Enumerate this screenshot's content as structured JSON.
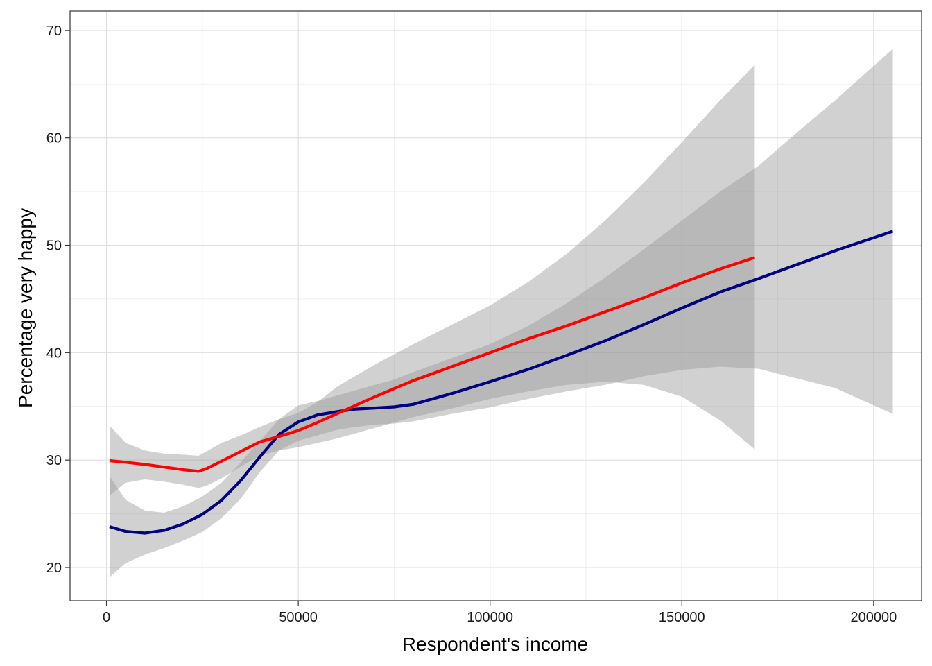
{
  "chart_data": {
    "type": "line",
    "title": "",
    "xlabel": "Respondent's income",
    "ylabel": "Percentage very happy",
    "xlim": [
      -9500,
      212500
    ],
    "ylim": [
      16.9,
      71.8
    ],
    "x_ticks": [
      0,
      50000,
      100000,
      150000,
      200000
    ],
    "x_tick_labels": [
      "0",
      "50000",
      "100000",
      "150000",
      "200000"
    ],
    "y_ticks": [
      20,
      30,
      40,
      50,
      60,
      70
    ],
    "y_tick_labels": [
      "20",
      "30",
      "40",
      "50",
      "60",
      "70"
    ],
    "grid": true,
    "legend": "none",
    "colors": {
      "panel_border": "#333333",
      "grid_major": "#dedede",
      "grid_minor": "#efefef",
      "ribbon": "#999999"
    },
    "series": [
      {
        "color": "#000080",
        "x": [
          800,
          5000,
          10000,
          15000,
          20000,
          25000,
          30000,
          35000,
          40000,
          45000,
          50000,
          55000,
          60000,
          65000,
          70000,
          75000,
          80000,
          90000,
          100000,
          110000,
          120000,
          130000,
          140000,
          150000,
          160000,
          170000,
          180000,
          190000,
          205000
        ],
        "y": [
          23.8,
          23.35,
          23.2,
          23.45,
          24.05,
          24.95,
          26.25,
          28.1,
          30.3,
          32.4,
          33.55,
          34.2,
          34.5,
          34.75,
          34.85,
          34.95,
          35.2,
          36.2,
          37.3,
          38.45,
          39.75,
          41.1,
          42.6,
          44.15,
          45.65,
          46.9,
          48.2,
          49.5,
          51.3
        ],
        "lower": [
          19.1,
          20.4,
          21.2,
          21.8,
          22.5,
          23.3,
          24.6,
          26.4,
          28.9,
          30.9,
          31.8,
          32.3,
          32.8,
          33.1,
          33.3,
          33.4,
          33.6,
          34.3,
          34.9,
          35.7,
          36.4,
          37.0,
          37.8,
          38.4,
          38.7,
          38.5,
          37.6,
          36.7,
          34.3
        ],
        "upper": [
          28.5,
          26.3,
          25.3,
          25.1,
          25.7,
          26.6,
          27.9,
          29.8,
          31.8,
          33.8,
          35.1,
          35.5,
          36.0,
          36.5,
          37.0,
          37.5,
          38.2,
          39.5,
          40.8,
          42.5,
          44.6,
          47.0,
          49.6,
          52.3,
          55.0,
          57.4,
          60.5,
          63.5,
          68.3
        ]
      },
      {
        "color": "#ff0000",
        "x": [
          800,
          5000,
          10000,
          15000,
          20000,
          24000,
          26000,
          30000,
          35000,
          40000,
          45000,
          50000,
          55000,
          60000,
          70000,
          80000,
          90000,
          100000,
          110000,
          120000,
          130000,
          140000,
          150000,
          160000,
          169000
        ],
        "y": [
          29.95,
          29.8,
          29.6,
          29.35,
          29.1,
          28.95,
          29.2,
          29.9,
          30.8,
          31.7,
          32.2,
          32.75,
          33.5,
          34.3,
          35.9,
          37.4,
          38.7,
          40.0,
          41.3,
          42.5,
          43.8,
          45.1,
          46.5,
          47.8,
          48.85
        ]
      },
      {
        "color": "#ff0000",
        "x": [
          800,
          5000,
          10000,
          15000,
          20000,
          24000,
          26000,
          30000,
          35000,
          40000,
          45000,
          50000,
          55000,
          60000,
          70000,
          80000,
          90000,
          100000,
          110000,
          120000,
          130000,
          140000,
          150000,
          160000,
          169000
        ],
        "lower": [
          26.7,
          27.9,
          28.2,
          28.0,
          27.7,
          27.4,
          27.6,
          28.3,
          29.4,
          30.4,
          30.9,
          31.2,
          31.6,
          32.0,
          33.0,
          34.0,
          34.8,
          35.7,
          36.4,
          37.0,
          37.3,
          37.0,
          35.9,
          33.7,
          31.0
        ],
        "upper": [
          33.2,
          31.6,
          30.9,
          30.6,
          30.5,
          30.4,
          30.8,
          31.6,
          32.3,
          33.1,
          33.8,
          34.4,
          35.4,
          36.8,
          38.9,
          40.8,
          42.6,
          44.4,
          46.6,
          49.2,
          52.3,
          55.8,
          59.6,
          63.5,
          66.8
        ]
      }
    ]
  }
}
